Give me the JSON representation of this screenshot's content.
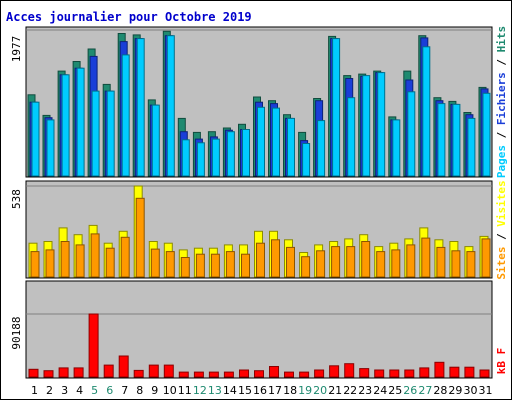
{
  "chart_data": {
    "type": "bar",
    "title": "Acces journalier pour Octobre 2019",
    "days": [
      "1",
      "2",
      "3",
      "4",
      "5",
      "6",
      "7",
      "8",
      "9",
      "10",
      "11",
      "12",
      "13",
      "14",
      "15",
      "16",
      "17",
      "18",
      "19",
      "20",
      "21",
      "22",
      "23",
      "24",
      "25",
      "26",
      "27",
      "28",
      "29",
      "30",
      "31"
    ],
    "weekend_days": [
      "5",
      "6",
      "12",
      "13",
      "19",
      "20",
      "26",
      "27"
    ],
    "panels": [
      {
        "id": "traffic",
        "max_label": "1977",
        "ymax": 1977,
        "series": [
          {
            "name": "Hits",
            "color": "#1f8a70",
            "values": [
              1100,
              820,
              1420,
              1550,
              1720,
              1240,
              1930,
              1910,
              1030,
              1960,
              780,
              590,
              600,
              650,
              700,
              1070,
              1020,
              830,
              590,
              1050,
              1890,
              1360,
              1380,
              1420,
              800,
              1420,
              1900,
              1060,
              1010,
              860,
              1200
            ]
          },
          {
            "name": "Fichiers",
            "color": "#1a3ed8",
            "values": [
              1000,
              790,
              1370,
              1460,
              1620,
              1150,
              1820,
              1860,
              960,
              1900,
              600,
              500,
              530,
              620,
              630,
              1000,
              980,
              780,
              480,
              1020,
              1860,
              1320,
              1350,
              1400,
              760,
              1300,
              1870,
              1020,
              970,
              830,
              1180
            ]
          },
          {
            "name": "Pages",
            "color": "#00ccff",
            "values": [
              1000,
              760,
              1370,
              1460,
              1150,
              1150,
              1640,
              1860,
              960,
              1900,
              490,
              450,
              500,
              600,
              630,
              930,
              920,
              780,
              440,
              750,
              1860,
              1060,
              1360,
              1400,
              760,
              1140,
              1750,
              980,
              970,
              780,
              1120
            ]
          }
        ]
      },
      {
        "id": "visits",
        "max_label": "538",
        "ymax": 538,
        "series": [
          {
            "name": "Visites",
            "color": "#ffff00",
            "values": [
              200,
              210,
              290,
              250,
              305,
              200,
              270,
              538,
              210,
              200,
              160,
              170,
              170,
              190,
              190,
              270,
              270,
              220,
              145,
              190,
              210,
              225,
              250,
              180,
              200,
              225,
              290,
              220,
              210,
              180,
              240
            ]
          },
          {
            "name": "Sites",
            "color": "#ff9900",
            "values": [
              150,
              160,
              210,
              190,
              255,
              170,
              235,
              465,
              165,
              150,
              115,
              135,
              135,
              150,
              135,
              200,
              220,
              175,
              120,
              155,
              180,
              180,
              210,
              150,
              160,
              190,
              230,
              175,
              155,
              150,
              225
            ]
          }
        ]
      },
      {
        "id": "volume",
        "max_label": "90188",
        "ymax": 90188,
        "series": [
          {
            "name": "kB F",
            "color": "#ff0000",
            "values": [
              11000,
              9000,
              13000,
              13000,
              90188,
              17000,
              30000,
              9500,
              17000,
              17000,
              7000,
              7000,
              7000,
              7000,
              10000,
              9000,
              15000,
              7000,
              7000,
              10000,
              16000,
              19000,
              12000,
              10000,
              10000,
              10000,
              13000,
              21000,
              14000,
              14000,
              10000
            ]
          }
        ]
      }
    ]
  }
}
